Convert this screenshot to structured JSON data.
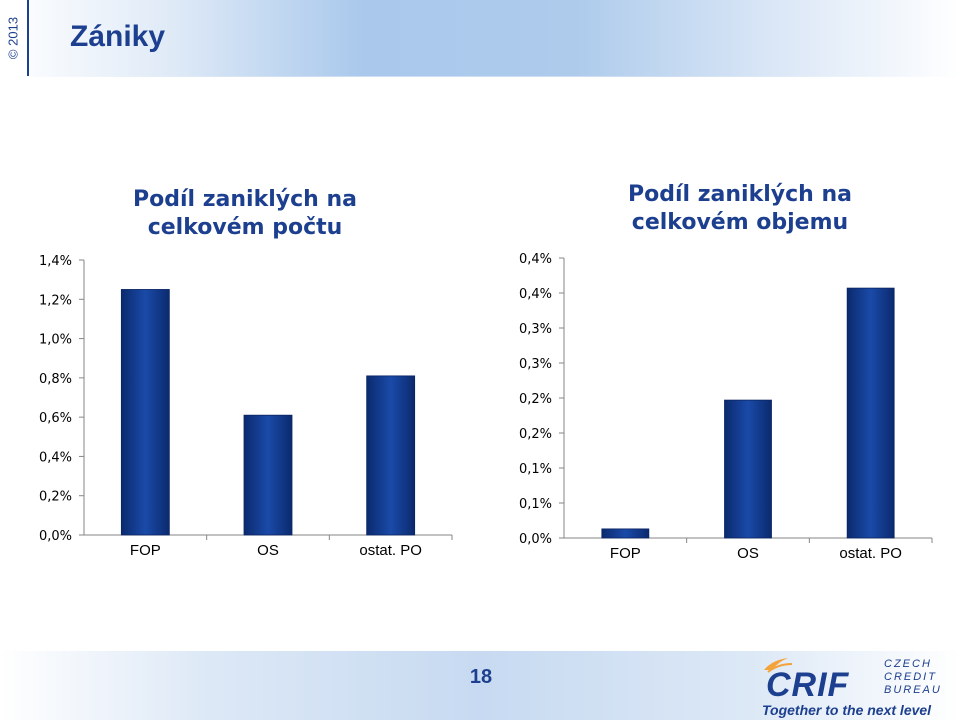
{
  "copyright": "© 2013",
  "page": {
    "title": "Zániky",
    "number": "18",
    "tagline": "Together to the next level"
  },
  "logo": {
    "brand": "CRIF",
    "lines": [
      "CZECH",
      "CREDIT",
      "BUREAU"
    ]
  },
  "colors": {
    "title": "#1d3f8f",
    "bar_dark": "#0b2a6e",
    "bar_light": "#1a4aa8",
    "logo_orange": "#f4a23a"
  },
  "chart_data": [
    {
      "type": "bar",
      "title_lines": [
        "Podíl zaniklých na",
        "celkovém počtu"
      ],
      "categories": [
        "FOP",
        "OS",
        "ostat. PO"
      ],
      "values": [
        1.25,
        0.61,
        0.81
      ],
      "ylim": [
        0,
        1.4
      ],
      "y_ticks": [
        0,
        0.2,
        0.4,
        0.6,
        0.8,
        1.0,
        1.2,
        1.4
      ],
      "y_tick_labels": [
        "0,0%",
        "0,2%",
        "0,4%",
        "0,6%",
        "0,8%",
        "1,0%",
        "1,2%",
        "1,4%"
      ],
      "grid": false,
      "legend": "none"
    },
    {
      "type": "bar",
      "title_lines": [
        "Podíl zaniklých na",
        "celkovém objemu"
      ],
      "categories": [
        "FOP",
        "OS",
        "ostat. PO"
      ],
      "values": [
        0.013,
        0.197,
        0.357
      ],
      "ylim": [
        0,
        0.4
      ],
      "y_ticks": [
        0,
        0.05,
        0.1,
        0.15,
        0.2,
        0.25,
        0.3,
        0.35,
        0.4
      ],
      "y_tick_labels": [
        "0,0%",
        "0,1%",
        "0,1%",
        "0,2%",
        "0,2%",
        "0,3%",
        "0,3%",
        "0,4%",
        "0,4%"
      ],
      "grid": false,
      "legend": "none"
    }
  ]
}
